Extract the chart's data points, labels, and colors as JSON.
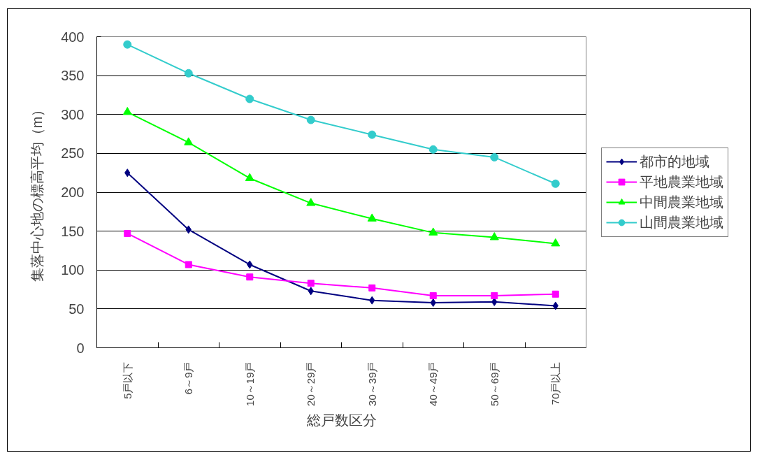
{
  "chart_data": {
    "type": "line",
    "xlabel": "総戸数区分",
    "ylabel": "集落中心地の標高平均（m）",
    "categories": [
      "5戸以下",
      "6～9戸",
      "10～19戸",
      "20～29戸",
      "30～39戸",
      "40～49戸",
      "50～69戸",
      "70戸以上"
    ],
    "ylim": [
      0,
      400
    ],
    "yticks": [
      0,
      50,
      100,
      150,
      200,
      250,
      300,
      350,
      400
    ],
    "grid": "y",
    "legend": "right",
    "line_style": "solid",
    "series": [
      {
        "name": "都市的地域",
        "color": "#000080",
        "marker": "diamond",
        "values": [
          225,
          152,
          107,
          73,
          61,
          58,
          59,
          54
        ]
      },
      {
        "name": "平地農業地域",
        "color": "#ff00ff",
        "marker": "square",
        "values": [
          147,
          107,
          91,
          83,
          77,
          67,
          67,
          69
        ]
      },
      {
        "name": "中間農業地域",
        "color": "#00ff00",
        "marker": "triangle",
        "values": [
          303,
          264,
          218,
          186,
          166,
          148,
          142,
          134
        ]
      },
      {
        "name": "山間農業地域",
        "color": "#33cccc",
        "marker": "circle",
        "values": [
          390,
          353,
          320,
          293,
          274,
          255,
          245,
          211
        ]
      }
    ]
  }
}
